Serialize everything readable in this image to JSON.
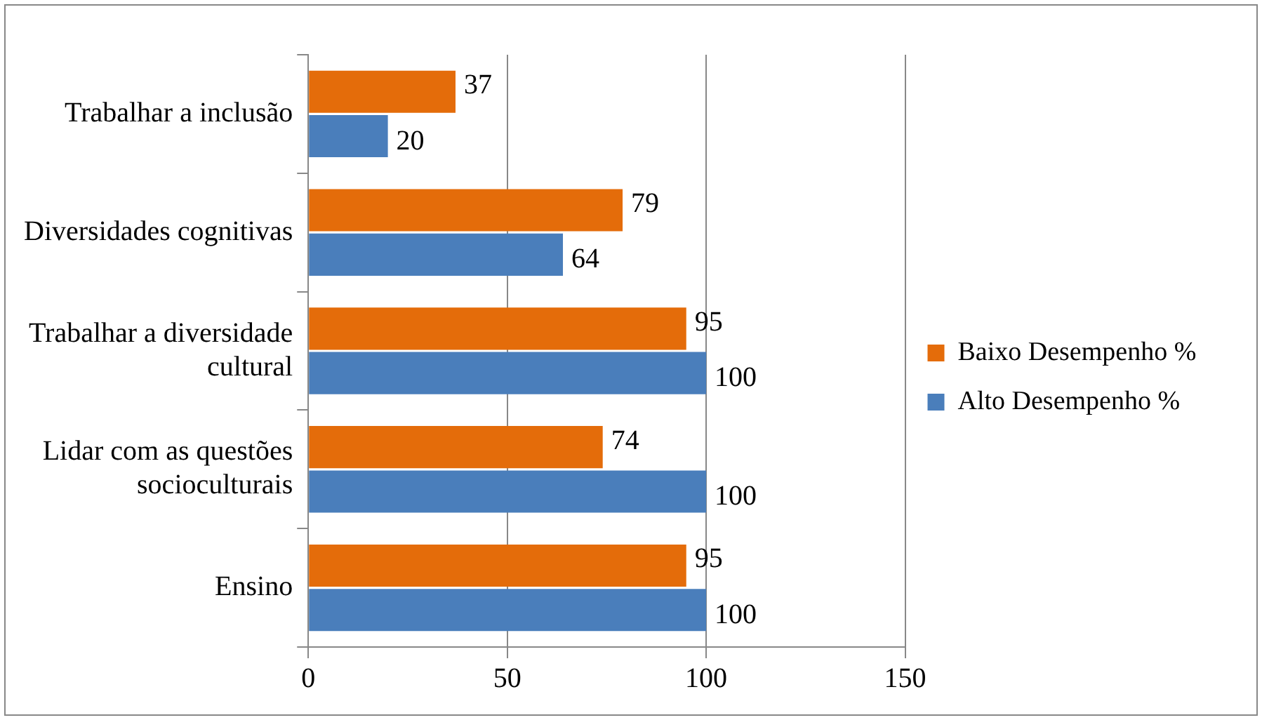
{
  "chart_data": {
    "type": "bar",
    "orientation": "horizontal",
    "categories": [
      "Trabalhar a inclusão",
      "Diversidades cognitivas",
      "Trabalhar a diversidade cultural",
      "Lidar com as questões socioculturais",
      "Ensino"
    ],
    "series": [
      {
        "name": "Baixo Desempenho %",
        "color": "#e46c0a",
        "values": [
          37,
          79,
          95,
          74,
          95
        ]
      },
      {
        "name": "Alto Desempenho %",
        "color": "#4a7ebb",
        "values": [
          20,
          64,
          100,
          100,
          100
        ]
      }
    ],
    "xlim": [
      0,
      150
    ],
    "xticks": [
      0,
      50,
      100,
      150
    ],
    "grid": "x",
    "legend": "right",
    "data_labels": true
  }
}
